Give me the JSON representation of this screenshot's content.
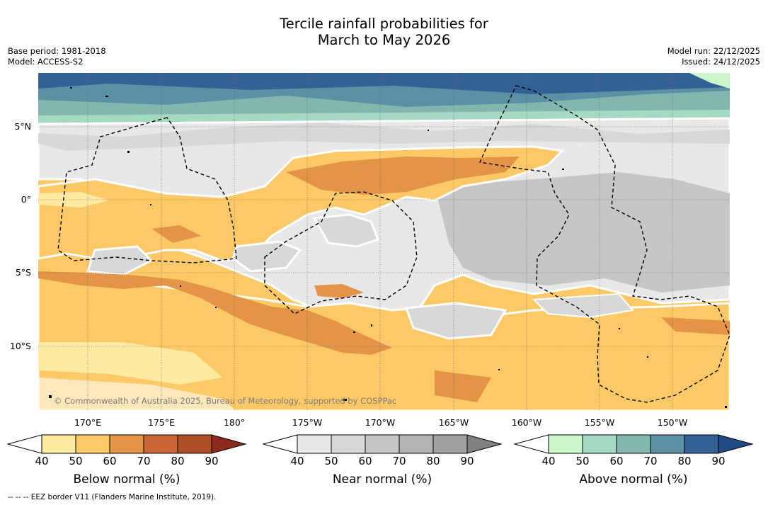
{
  "title_line1": "Tercile rainfall probabilities for",
  "title_line2": "March to May 2026",
  "meta_left": {
    "base_period": "Base period: 1981-2018",
    "model": "Model: ACCESS-S2"
  },
  "meta_right": {
    "model_run": "Model run: 22/12/2025",
    "issued": "Issued: 24/12/2025"
  },
  "lat_labels": [
    "5°N",
    "0°",
    "5°S",
    "10°S"
  ],
  "lon_labels": [
    "170°E",
    "175°E",
    "180°",
    "175°W",
    "170°W",
    "165°W",
    "160°W",
    "155°W",
    "150°W"
  ],
  "copyright": "© Commonwealth of Australia 2025, Bureau of Meteorology, supported by COSPPac",
  "colorbars": [
    {
      "label": "Below normal (%)",
      "ticks": [
        "40",
        "50",
        "60",
        "70",
        "80",
        "90"
      ],
      "colors": [
        "#ffffff",
        "#feeaa0",
        "#fdc966",
        "#e39447",
        "#cb6535",
        "#b04e28",
        "#8c2a1e"
      ]
    },
    {
      "label": "Near normal (%)",
      "ticks": [
        "40",
        "50",
        "60",
        "70",
        "80",
        "90"
      ],
      "colors": [
        "#ffffff",
        "#e8e8e8",
        "#d8d8d8",
        "#c6c6c6",
        "#b3b3b3",
        "#a0a0a0",
        "#808080"
      ]
    },
    {
      "label": "Above normal (%)",
      "ticks": [
        "40",
        "50",
        "60",
        "70",
        "80",
        "90"
      ],
      "colors": [
        "#ffffff",
        "#cbf7cb",
        "#a6d9c2",
        "#82b7b0",
        "#5c91a5",
        "#336195",
        "#1f4a86"
      ]
    }
  ],
  "footnote": "--  --  -- EEZ border V11 (Flanders Marine Institute, 2019)."
}
